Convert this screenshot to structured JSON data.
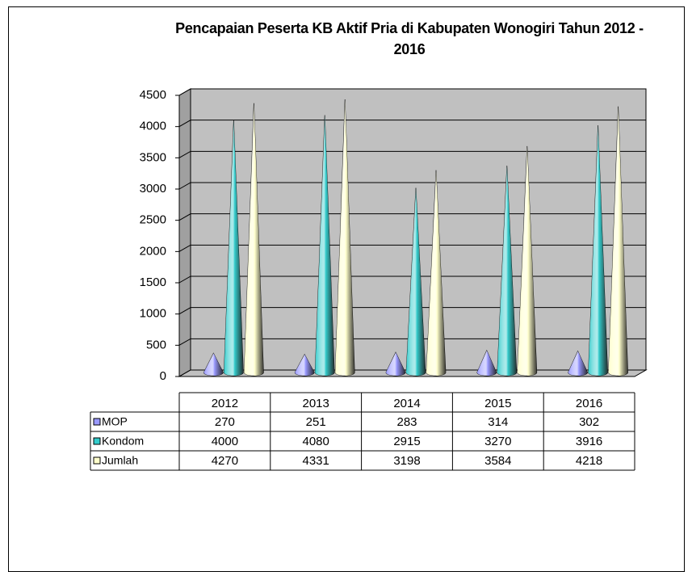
{
  "chart_data": {
    "type": "cone",
    "title": "Pencapaian Peserta KB Aktif Pria di Kabupaten Wonogiri Tahun 2012 - 2016",
    "categories": [
      "2012",
      "2013",
      "2014",
      "2015",
      "2016"
    ],
    "series": [
      {
        "name": "MOP",
        "color": "#9999ff",
        "values": [
          270,
          251,
          283,
          314,
          302
        ]
      },
      {
        "name": "Kondom",
        "color": "#33cccc",
        "values": [
          4000,
          4080,
          2915,
          3270,
          3916
        ]
      },
      {
        "name": "Jumlah",
        "color": "#ffffcc",
        "values": [
          4270,
          4331,
          3198,
          3584,
          4218
        ]
      }
    ],
    "ylim": [
      0,
      4500
    ],
    "yticks": [
      0,
      500,
      1000,
      1500,
      2000,
      2500,
      3000,
      3500,
      4000,
      4500
    ],
    "grid": true
  }
}
